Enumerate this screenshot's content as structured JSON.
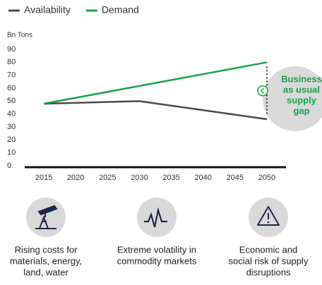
{
  "chart_data": {
    "type": "line",
    "y_label": "Bn Tons",
    "series": [
      {
        "name": "Availability",
        "color": "#4a4a4a",
        "x": [
          2015,
          2030,
          2050
        ],
        "values": [
          48,
          50,
          36
        ]
      },
      {
        "name": "Demand",
        "color": "#16a34a",
        "x": [
          2015,
          2050
        ],
        "values": [
          48,
          80
        ]
      }
    ],
    "xlim": [
      2012,
      2053
    ],
    "xticks": [
      2015,
      2020,
      2025,
      2030,
      2035,
      2040,
      2045,
      2050
    ],
    "ylim": [
      0,
      90
    ],
    "yticks": [
      0,
      10,
      20,
      30,
      40,
      50,
      60,
      70,
      80,
      90
    ],
    "annotation": [
      "Business",
      "as usual",
      "supply",
      "gap"
    ]
  },
  "footer_items": [
    {
      "lines": [
        "Rising costs for",
        "materials, energy,",
        "land, water"
      ]
    },
    {
      "lines": [
        "Extreme volatility in",
        "commodity markets"
      ]
    },
    {
      "lines": [
        "Economic and",
        "social risk of supply",
        "disruptions"
      ]
    }
  ]
}
